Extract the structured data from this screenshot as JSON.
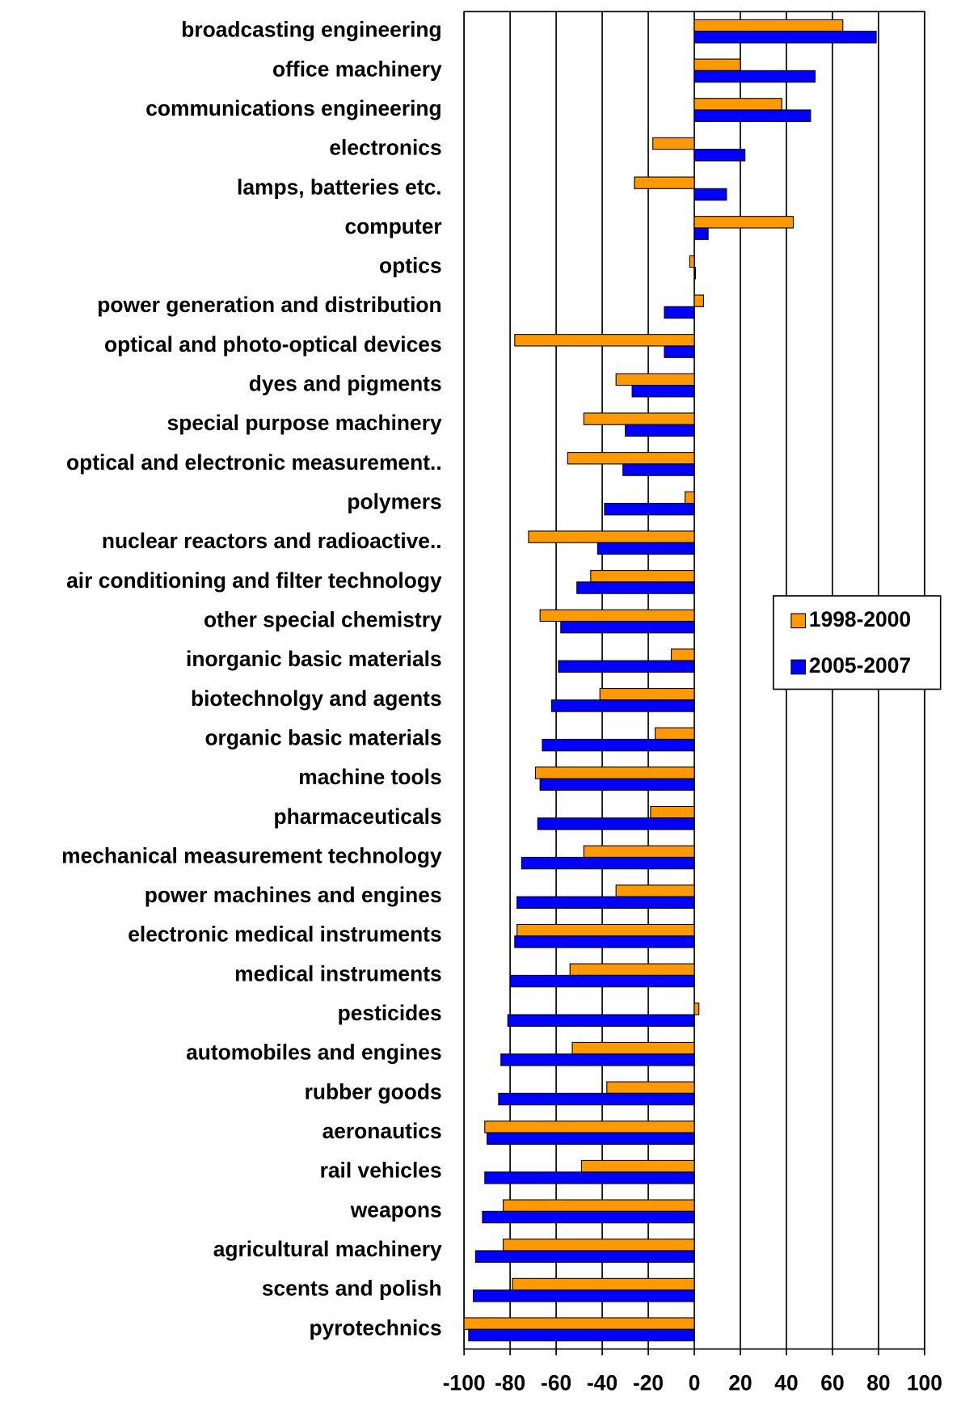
{
  "chart_data": {
    "type": "barh",
    "categories": [
      "broadcasting engineering",
      "office machinery",
      "communications engineering",
      "electronics",
      "lamps, batteries etc.",
      "computer",
      "optics",
      "power generation and distribution",
      "optical and photo-optical devices",
      "dyes and pigments",
      "special purpose machinery",
      "optical and electronic measurement..",
      "polymers",
      "nuclear reactors and radioactive..",
      "air conditioning and filter technology",
      "other special chemistry",
      "inorganic basic materials",
      "biotechnolgy and agents",
      "organic basic materials",
      "machine tools",
      "pharmaceuticals",
      "mechanical measurement technology",
      "power machines and engines",
      "electronic medical instruments",
      "medical instruments",
      "pesticides",
      "automobiles and engines",
      "rubber goods",
      "aeronautics",
      "rail vehicles",
      "weapons",
      "agricultural machinery",
      "scents and polish",
      "pyrotechnics"
    ],
    "series": [
      {
        "name": "1998-2000",
        "color": "#ff9900",
        "values": [
          64.5,
          20,
          38,
          -18,
          -26,
          43,
          -2,
          4,
          -78,
          -34,
          -48,
          -55,
          -4,
          -72,
          -45,
          -67,
          -10,
          -41,
          -17,
          -69,
          -19,
          -48,
          -34,
          -77,
          -54,
          2,
          -53,
          -38,
          -91,
          -49,
          -83,
          -83,
          -79,
          -100
        ]
      },
      {
        "name": "2005-2007",
        "color": "#0000ff",
        "values": [
          79,
          52.5,
          50.5,
          22,
          14,
          6,
          0.5,
          -13,
          -13,
          -27,
          -30,
          -31,
          -39,
          -42,
          -51,
          -58,
          -59,
          -62,
          -66,
          -67,
          -68,
          -75,
          -77,
          -78,
          -80,
          -81,
          -84,
          -85,
          -90,
          -91,
          -92,
          -95,
          -96,
          -98
        ]
      }
    ],
    "xlim": [
      -100,
      100
    ],
    "xticks": [
      -100,
      -80,
      -60,
      -40,
      -20,
      0,
      20,
      40,
      60,
      80,
      100
    ],
    "grid": true,
    "legend": "right"
  }
}
